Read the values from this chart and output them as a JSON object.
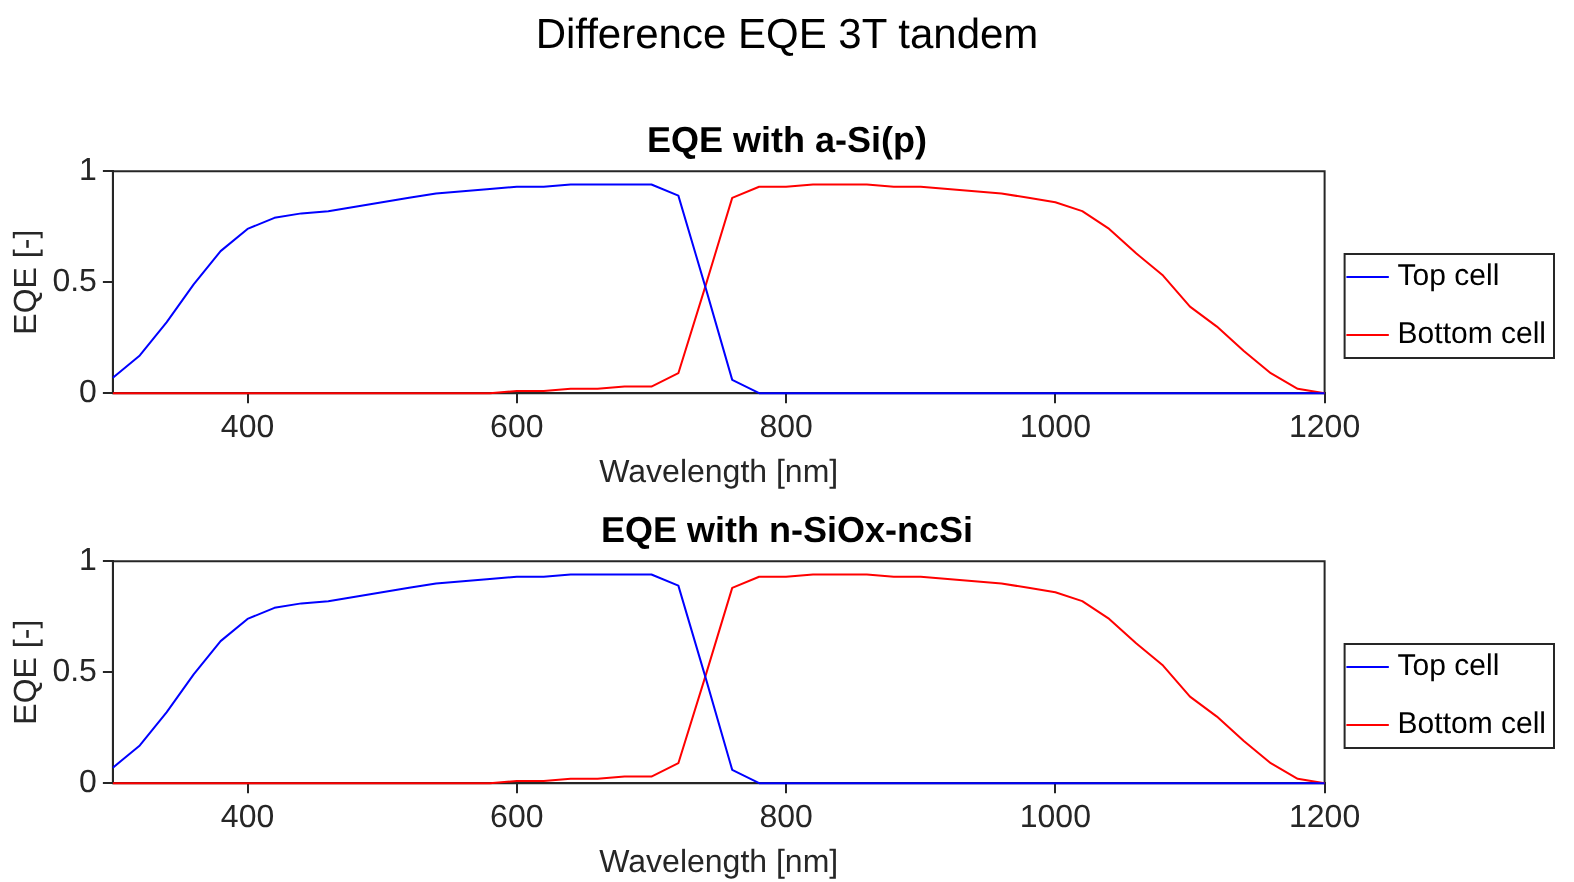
{
  "chart_data": [
    {
      "type": "line",
      "title": "Difference EQE 3T tandem",
      "subtitle": "EQE with a-Si(p)",
      "xlabel": "Wavelength [nm]",
      "ylabel": "EQE [-]",
      "xlim": [
        300,
        1200
      ],
      "xticks": [
        400,
        600,
        800,
        1000,
        1200
      ],
      "ylim": [
        0,
        1
      ],
      "yticks": [
        0,
        0.5,
        1
      ],
      "grid": false,
      "legend": "right",
      "marker": "none",
      "line_style": "solid",
      "x": [
        300,
        320,
        340,
        360,
        380,
        400,
        420,
        440,
        460,
        480,
        500,
        520,
        540,
        560,
        580,
        600,
        620,
        640,
        660,
        680,
        700,
        720,
        740,
        760,
        780,
        800,
        820,
        840,
        860,
        880,
        900,
        920,
        940,
        960,
        980,
        1000,
        1020,
        1040,
        1060,
        1080,
        1100,
        1120,
        1140,
        1160,
        1180,
        1200
      ],
      "series": [
        {
          "name": "Top cell",
          "color": "#0000ff",
          "values": [
            0.07,
            0.17,
            0.32,
            0.49,
            0.64,
            0.74,
            0.79,
            0.81,
            0.82,
            0.84,
            0.86,
            0.88,
            0.9,
            0.91,
            0.92,
            0.93,
            0.93,
            0.94,
            0.94,
            0.94,
            0.94,
            0.89,
            0.48,
            0.06,
            0,
            0,
            0,
            0,
            0,
            0,
            0,
            0,
            0,
            0,
            0,
            0,
            0,
            0,
            0,
            0,
            0,
            0,
            0,
            0,
            0,
            0
          ]
        },
        {
          "name": "Bottom cell",
          "color": "#ff0000",
          "values": [
            0,
            0,
            0,
            0,
            0,
            0,
            0,
            0,
            0,
            0,
            0,
            0,
            0,
            0,
            0,
            0.01,
            0.01,
            0.02,
            0.02,
            0.03,
            0.03,
            0.09,
            0.48,
            0.88,
            0.93,
            0.93,
            0.94,
            0.94,
            0.94,
            0.93,
            0.93,
            0.92,
            0.91,
            0.9,
            0.88,
            0.86,
            0.82,
            0.74,
            0.63,
            0.53,
            0.39,
            0.3,
            0.19,
            0.09,
            0.02,
            0
          ]
        }
      ]
    },
    {
      "type": "line",
      "title": "EQE with n-SiOx-ncSi",
      "xlabel": "Wavelength [nm]",
      "ylabel": "EQE [-]",
      "xlim": [
        300,
        1200
      ],
      "xticks": [
        400,
        600,
        800,
        1000,
        1200
      ],
      "ylim": [
        0,
        1
      ],
      "yticks": [
        0,
        0.5,
        1
      ],
      "grid": false,
      "legend": "right",
      "marker": "none",
      "line_style": "solid",
      "x": [
        300,
        320,
        340,
        360,
        380,
        400,
        420,
        440,
        460,
        480,
        500,
        520,
        540,
        560,
        580,
        600,
        620,
        640,
        660,
        680,
        700,
        720,
        740,
        760,
        780,
        800,
        820,
        840,
        860,
        880,
        900,
        920,
        940,
        960,
        980,
        1000,
        1020,
        1040,
        1060,
        1080,
        1100,
        1120,
        1140,
        1160,
        1180,
        1200
      ],
      "series": [
        {
          "name": "Top cell",
          "color": "#0000ff",
          "values": [
            0.07,
            0.17,
            0.32,
            0.49,
            0.64,
            0.74,
            0.79,
            0.81,
            0.82,
            0.84,
            0.86,
            0.88,
            0.9,
            0.91,
            0.92,
            0.93,
            0.93,
            0.94,
            0.94,
            0.94,
            0.94,
            0.89,
            0.48,
            0.06,
            0,
            0,
            0,
            0,
            0,
            0,
            0,
            0,
            0,
            0,
            0,
            0,
            0,
            0,
            0,
            0,
            0,
            0,
            0,
            0,
            0,
            0
          ]
        },
        {
          "name": "Bottom cell",
          "color": "#ff0000",
          "values": [
            0,
            0,
            0,
            0,
            0,
            0,
            0,
            0,
            0,
            0,
            0,
            0,
            0,
            0,
            0,
            0.01,
            0.01,
            0.02,
            0.02,
            0.03,
            0.03,
            0.09,
            0.48,
            0.88,
            0.93,
            0.93,
            0.94,
            0.94,
            0.94,
            0.93,
            0.93,
            0.92,
            0.91,
            0.9,
            0.88,
            0.86,
            0.82,
            0.74,
            0.63,
            0.53,
            0.39,
            0.3,
            0.19,
            0.09,
            0.02,
            0
          ]
        }
      ]
    }
  ]
}
